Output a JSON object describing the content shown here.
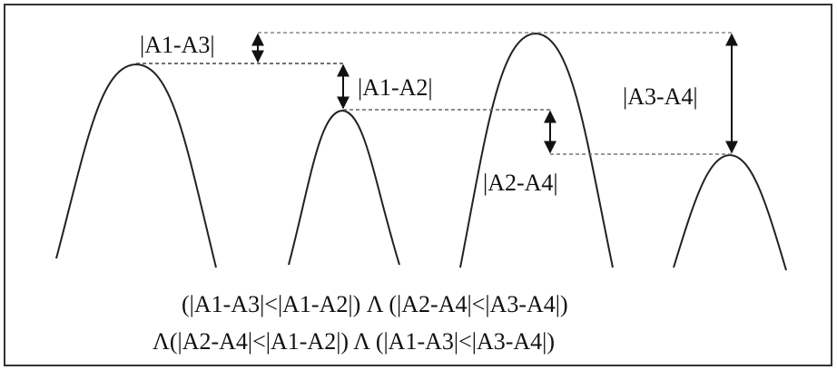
{
  "labels": {
    "a1_a3": "|A1-A3|",
    "a1_a2": "|A1-A2|",
    "a2_a4": "|A2-A4|",
    "a3_a4": "|A3-A4|"
  },
  "formula": {
    "line1": "(|A1-A3|<|A1-A2|) Λ (|A2-A4|<|A3-A4|)",
    "line2": "Λ(|A2-A4|<|A1-A2|) Λ (|A1-A3|<|A3-A4|)"
  },
  "colors": {
    "curve": "#222222",
    "dash": "#555555",
    "bar_accent_purple": "#8a3d8f",
    "bar_accent_green": "#4f9a5a"
  }
}
